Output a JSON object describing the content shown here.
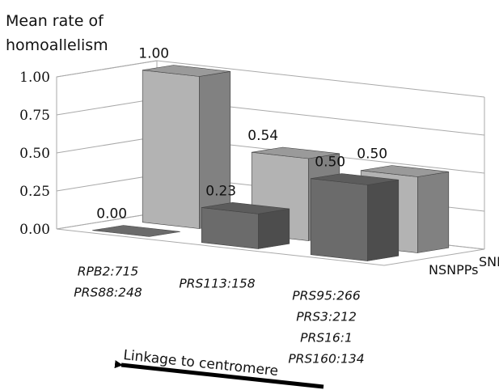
{
  "chart_data": {
    "type": "bar",
    "style": "3d-clustered",
    "ylabel_line1": "Mean rate of",
    "ylabel_line2": "homoallelism",
    "ylim": [
      0,
      1
    ],
    "yticks": [
      "0.00",
      "0.25",
      "0.50",
      "0.75",
      "1.00"
    ],
    "categories": [
      [
        "RPB2:715",
        "PRS88:248"
      ],
      [
        "PRS113:158"
      ],
      [
        "PRS95:266",
        "PRS3:212",
        "PRS16:1",
        "PRS160:134"
      ]
    ],
    "series": [
      {
        "name": "NSNPPs",
        "values": [
          0.0,
          0.23,
          0.5
        ],
        "labels": [
          "0.00",
          "0.23",
          "0.50"
        ],
        "color": "#6b6b6b"
      },
      {
        "name": "SNPPs",
        "values": [
          1.0,
          0.54,
          0.5
        ],
        "labels": [
          "1.00",
          "0.54",
          "0.50"
        ],
        "color": "#b3b3b3"
      }
    ],
    "grid": true,
    "annotation": "Linkage to centromere"
  }
}
